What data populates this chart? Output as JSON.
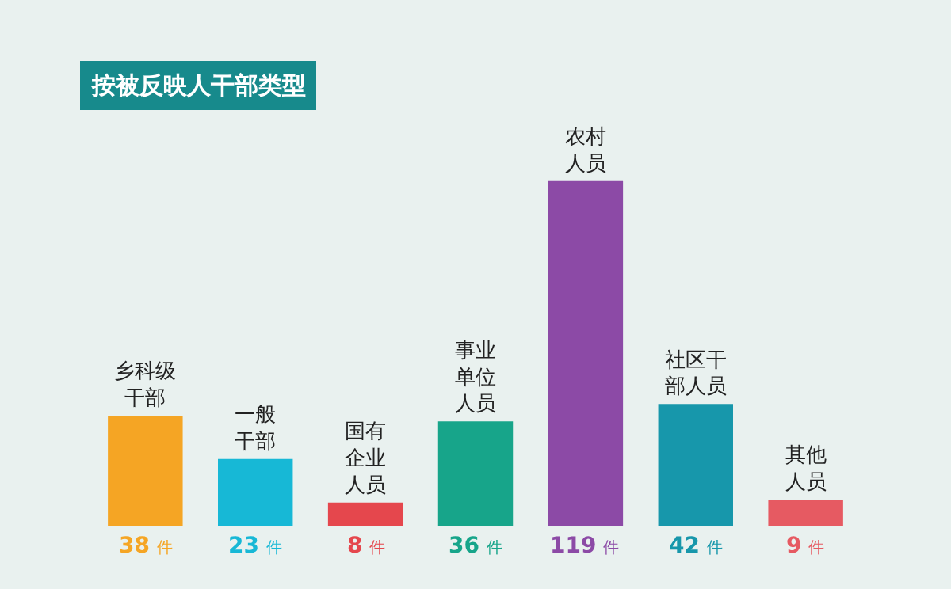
{
  "chart_data": {
    "type": "bar",
    "title": "按被反映人干部类型",
    "categories": [
      "乡科级干部",
      "一般干部",
      "国有企业人员",
      "事业单位人员",
      "农村人员",
      "社区干部人员",
      "其他人员"
    ],
    "values": [
      38,
      23,
      8,
      36,
      119,
      42,
      9
    ],
    "colors": [
      "#f5a524",
      "#17b8d6",
      "#e5474d",
      "#17a58a",
      "#8c4aa6",
      "#1797ab",
      "#e65a62"
    ],
    "value_labels": [
      "38 件",
      "23 件",
      "8 件",
      "36 件",
      "119 件",
      "42 件",
      "9 件"
    ],
    "tick_labels": false,
    "grid": false,
    "legend": false
  }
}
